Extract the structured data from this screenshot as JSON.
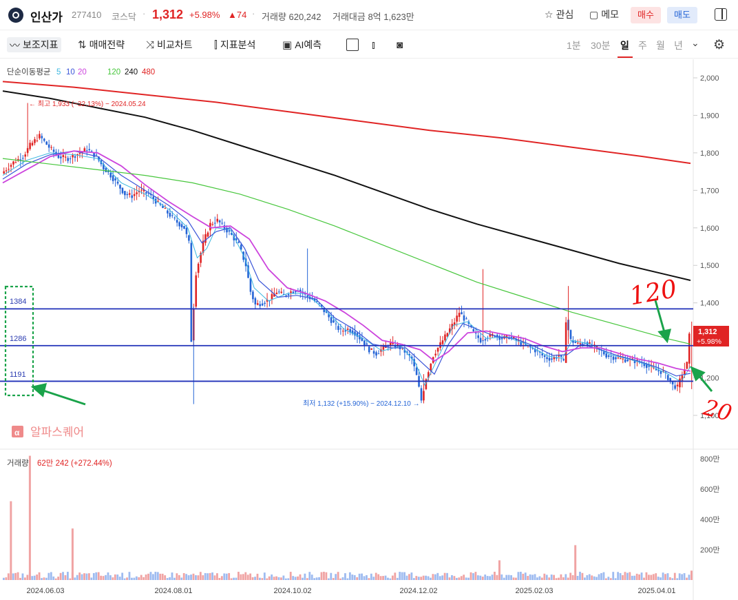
{
  "header": {
    "name": "인산가",
    "code": "277410",
    "market": "코스닥",
    "separator": "·",
    "price": "1,312",
    "change_pct": "+5.98%",
    "change_abs": "▲74",
    "volume_label": "거래량 620,242",
    "amount_label": "거래대금 8억 1,623만",
    "watch_label": "관심",
    "memo_label": "메모",
    "buy_label": "매수",
    "sell_label": "매도"
  },
  "toolbar": {
    "indicators": "보조지표",
    "strategy": "매매전략",
    "compare": "비교차트",
    "analysis": "지표분석",
    "ai": "AI예측",
    "periods": [
      "1분",
      "30분",
      "일",
      "주",
      "월",
      "년"
    ],
    "selected_period": "일"
  },
  "overlay": {
    "ma_title": "단순이동평균",
    "ma_periods": [
      {
        "label": "5",
        "color": "#3ab7e0"
      },
      {
        "label": "10",
        "color": "#3a55d8"
      },
      {
        "label": "20",
        "color": "#cc44dd"
      },
      {
        "label": "120",
        "color": "#46c63b"
      },
      {
        "label": "240",
        "color": "#111111"
      },
      {
        "label": "480",
        "color": "#e02424"
      }
    ],
    "high_annotation": "← 최고 1,933 (−32.13%) − 2024.05.24",
    "low_annotation": "최저 1,132 (+15.90%) − 2024.12.10 →",
    "watermark": "알파스퀘어",
    "price_tag": "1,312",
    "price_tag_pct": "+5.98%",
    "hline_labels": [
      "1384",
      "1286",
      "1191"
    ],
    "volume_title": "거래량",
    "volume_value": "62만 242 (+272.44%)",
    "handwriting": [
      "120",
      "20"
    ]
  },
  "chart_data": {
    "type": "candlestick",
    "price_axis": {
      "ticks": [
        "2,000",
        "1,900",
        "1,800",
        "1,700",
        "1,600",
        "1,500",
        "1,400",
        "1,200",
        "1,100"
      ],
      "ylim": [
        1080,
        2030
      ]
    },
    "volume_axis": {
      "ticks": [
        "800만",
        "600만",
        "400만",
        "200만"
      ],
      "ylim": [
        0,
        900
      ]
    },
    "x_ticks": [
      "2024.06.03",
      "2024.08.01",
      "2024.10.02",
      "2024.12.02",
      "2025.02.03",
      "2025.04.01"
    ],
    "horizontal_lines": [
      1384,
      1286,
      1191
    ],
    "last_price": 1312,
    "high": {
      "value": 1933,
      "date": "2024.05.24"
    },
    "low": {
      "value": 1132,
      "date": "2024.12.10"
    },
    "price_path": [
      [
        0,
        1745
      ],
      [
        5,
        1775
      ],
      [
        9,
        1790
      ],
      [
        12,
        1820
      ],
      [
        16,
        1845
      ],
      [
        20,
        1815
      ],
      [
        24,
        1790
      ],
      [
        28,
        1785
      ],
      [
        33,
        1800
      ],
      [
        36,
        1810
      ],
      [
        40,
        1790
      ],
      [
        43,
        1760
      ],
      [
        46,
        1740
      ],
      [
        49,
        1715
      ],
      [
        52,
        1690
      ],
      [
        55,
        1685
      ],
      [
        58,
        1700
      ],
      [
        62,
        1690
      ],
      [
        66,
        1665
      ],
      [
        70,
        1640
      ],
      [
        74,
        1615
      ],
      [
        77,
        1600
      ],
      [
        79,
        1560
      ],
      [
        80,
        1300
      ],
      [
        82,
        1480
      ],
      [
        85,
        1560
      ],
      [
        88,
        1610
      ],
      [
        91,
        1620
      ],
      [
        94,
        1600
      ],
      [
        97,
        1580
      ],
      [
        100,
        1555
      ],
      [
        103,
        1500
      ],
      [
        105,
        1430
      ],
      [
        107,
        1395
      ],
      [
        110,
        1400
      ],
      [
        113,
        1410
      ],
      [
        116,
        1430
      ],
      [
        119,
        1420
      ],
      [
        122,
        1430
      ],
      [
        125,
        1435
      ],
      [
        128,
        1420
      ],
      [
        131,
        1410
      ],
      [
        134,
        1395
      ],
      [
        137,
        1370
      ],
      [
        140,
        1345
      ],
      [
        143,
        1325
      ],
      [
        146,
        1330
      ],
      [
        149,
        1320
      ],
      [
        152,
        1300
      ],
      [
        155,
        1275
      ],
      [
        158,
        1265
      ],
      [
        161,
        1280
      ],
      [
        164,
        1290
      ],
      [
        167,
        1285
      ],
      [
        170,
        1270
      ],
      [
        173,
        1250
      ],
      [
        175,
        1205
      ],
      [
        177,
        1140
      ],
      [
        179,
        1200
      ],
      [
        182,
        1260
      ],
      [
        185,
        1290
      ],
      [
        188,
        1320
      ],
      [
        191,
        1350
      ],
      [
        193,
        1375
      ],
      [
        196,
        1350
      ],
      [
        199,
        1320
      ],
      [
        202,
        1300
      ],
      [
        205,
        1310
      ],
      [
        208,
        1315
      ],
      [
        211,
        1305
      ],
      [
        214,
        1310
      ],
      [
        217,
        1300
      ],
      [
        220,
        1290
      ],
      [
        223,
        1280
      ],
      [
        226,
        1270
      ],
      [
        229,
        1255
      ],
      [
        232,
        1250
      ],
      [
        235,
        1260
      ],
      [
        237,
        1240
      ],
      [
        238,
        1355
      ],
      [
        240,
        1300
      ],
      [
        243,
        1290
      ],
      [
        246,
        1295
      ],
      [
        249,
        1285
      ],
      [
        252,
        1275
      ],
      [
        255,
        1260
      ],
      [
        258,
        1255
      ],
      [
        261,
        1250
      ],
      [
        264,
        1248
      ],
      [
        267,
        1245
      ],
      [
        270,
        1240
      ],
      [
        273,
        1230
      ],
      [
        276,
        1220
      ],
      [
        279,
        1215
      ],
      [
        281,
        1200
      ],
      [
        283,
        1180
      ],
      [
        285,
        1175
      ],
      [
        287,
        1210
      ],
      [
        289,
        1238
      ],
      [
        290,
        1312
      ]
    ],
    "moving_averages": [
      {
        "period": 5,
        "values": [
          [
            0,
            1740
          ],
          [
            10,
            1780
          ],
          [
            20,
            1800
          ],
          [
            30,
            1795
          ],
          [
            40,
            1785
          ],
          [
            50,
            1720
          ],
          [
            60,
            1690
          ],
          [
            70,
            1650
          ],
          [
            78,
            1600
          ],
          [
            82,
            1520
          ],
          [
            86,
            1545
          ],
          [
            90,
            1600
          ],
          [
            96,
            1595
          ],
          [
            102,
            1520
          ],
          [
            106,
            1440
          ],
          [
            112,
            1405
          ],
          [
            120,
            1425
          ],
          [
            128,
            1425
          ],
          [
            136,
            1380
          ],
          [
            144,
            1330
          ],
          [
            152,
            1305
          ],
          [
            160,
            1272
          ],
          [
            168,
            1285
          ],
          [
            174,
            1240
          ],
          [
            178,
            1180
          ],
          [
            184,
            1260
          ],
          [
            190,
            1340
          ],
          [
            196,
            1350
          ],
          [
            204,
            1305
          ],
          [
            212,
            1310
          ],
          [
            220,
            1292
          ],
          [
            230,
            1258
          ],
          [
            236,
            1252
          ],
          [
            240,
            1300
          ],
          [
            248,
            1290
          ],
          [
            256,
            1262
          ],
          [
            264,
            1250
          ],
          [
            272,
            1235
          ],
          [
            280,
            1212
          ],
          [
            286,
            1190
          ],
          [
            290,
            1230
          ]
        ]
      },
      {
        "period": 10,
        "values": [
          [
            0,
            1730
          ],
          [
            10,
            1770
          ],
          [
            20,
            1795
          ],
          [
            30,
            1805
          ],
          [
            40,
            1790
          ],
          [
            50,
            1740
          ],
          [
            60,
            1700
          ],
          [
            70,
            1660
          ],
          [
            78,
            1620
          ],
          [
            84,
            1560
          ],
          [
            90,
            1590
          ],
          [
            96,
            1600
          ],
          [
            102,
            1545
          ],
          [
            108,
            1460
          ],
          [
            116,
            1415
          ],
          [
            124,
            1420
          ],
          [
            132,
            1410
          ],
          [
            140,
            1360
          ],
          [
            148,
            1330
          ],
          [
            156,
            1290
          ],
          [
            164,
            1280
          ],
          [
            170,
            1280
          ],
          [
            176,
            1245
          ],
          [
            182,
            1210
          ],
          [
            188,
            1290
          ],
          [
            194,
            1345
          ],
          [
            200,
            1330
          ],
          [
            208,
            1310
          ],
          [
            216,
            1305
          ],
          [
            224,
            1285
          ],
          [
            232,
            1260
          ],
          [
            238,
            1262
          ],
          [
            244,
            1290
          ],
          [
            252,
            1275
          ],
          [
            260,
            1258
          ],
          [
            268,
            1245
          ],
          [
            276,
            1228
          ],
          [
            284,
            1205
          ],
          [
            290,
            1212
          ]
        ]
      },
      {
        "period": 20,
        "values": [
          [
            0,
            1720
          ],
          [
            10,
            1755
          ],
          [
            20,
            1790
          ],
          [
            30,
            1805
          ],
          [
            40,
            1800
          ],
          [
            50,
            1765
          ],
          [
            60,
            1715
          ],
          [
            70,
            1670
          ],
          [
            80,
            1630
          ],
          [
            88,
            1600
          ],
          [
            96,
            1605
          ],
          [
            104,
            1570
          ],
          [
            112,
            1490
          ],
          [
            120,
            1440
          ],
          [
            128,
            1425
          ],
          [
            136,
            1405
          ],
          [
            144,
            1375
          ],
          [
            152,
            1340
          ],
          [
            160,
            1300
          ],
          [
            168,
            1290
          ],
          [
            176,
            1275
          ],
          [
            182,
            1245
          ],
          [
            188,
            1270
          ],
          [
            196,
            1320
          ],
          [
            204,
            1325
          ],
          [
            212,
            1315
          ],
          [
            220,
            1305
          ],
          [
            228,
            1285
          ],
          [
            236,
            1270
          ],
          [
            244,
            1280
          ],
          [
            252,
            1280
          ],
          [
            260,
            1265
          ],
          [
            268,
            1250
          ],
          [
            276,
            1240
          ],
          [
            284,
            1225
          ],
          [
            290,
            1218
          ]
        ]
      },
      {
        "period": 120,
        "values": [
          [
            0,
            1785
          ],
          [
            20,
            1770
          ],
          [
            40,
            1755
          ],
          [
            60,
            1740
          ],
          [
            80,
            1720
          ],
          [
            100,
            1690
          ],
          [
            120,
            1650
          ],
          [
            140,
            1605
          ],
          [
            160,
            1555
          ],
          [
            180,
            1505
          ],
          [
            200,
            1455
          ],
          [
            220,
            1415
          ],
          [
            240,
            1375
          ],
          [
            260,
            1340
          ],
          [
            280,
            1305
          ],
          [
            290,
            1290
          ]
        ]
      },
      {
        "period": 240,
        "values": [
          [
            0,
            1965
          ],
          [
            20,
            1945
          ],
          [
            40,
            1920
          ],
          [
            60,
            1895
          ],
          [
            80,
            1860
          ],
          [
            100,
            1820
          ],
          [
            120,
            1780
          ],
          [
            140,
            1740
          ],
          [
            160,
            1695
          ],
          [
            180,
            1650
          ],
          [
            200,
            1610
          ],
          [
            220,
            1575
          ],
          [
            240,
            1540
          ],
          [
            260,
            1505
          ],
          [
            280,
            1475
          ],
          [
            290,
            1460
          ]
        ]
      },
      {
        "period": 480,
        "values": [
          [
            0,
            1990
          ],
          [
            30,
            1975
          ],
          [
            60,
            1955
          ],
          [
            90,
            1935
          ],
          [
            120,
            1910
          ],
          [
            150,
            1885
          ],
          [
            180,
            1860
          ],
          [
            210,
            1840
          ],
          [
            240,
            1815
          ],
          [
            270,
            1790
          ],
          [
            290,
            1772
          ]
        ]
      }
    ],
    "volume_spikes": [
      {
        "day": 3,
        "value": 520
      },
      {
        "day": 11,
        "value": 820
      },
      {
        "day": 29,
        "value": 340
      },
      {
        "day": 209,
        "value": 130
      },
      {
        "day": 241,
        "value": 230
      },
      {
        "day": 290,
        "value": 62
      }
    ]
  }
}
